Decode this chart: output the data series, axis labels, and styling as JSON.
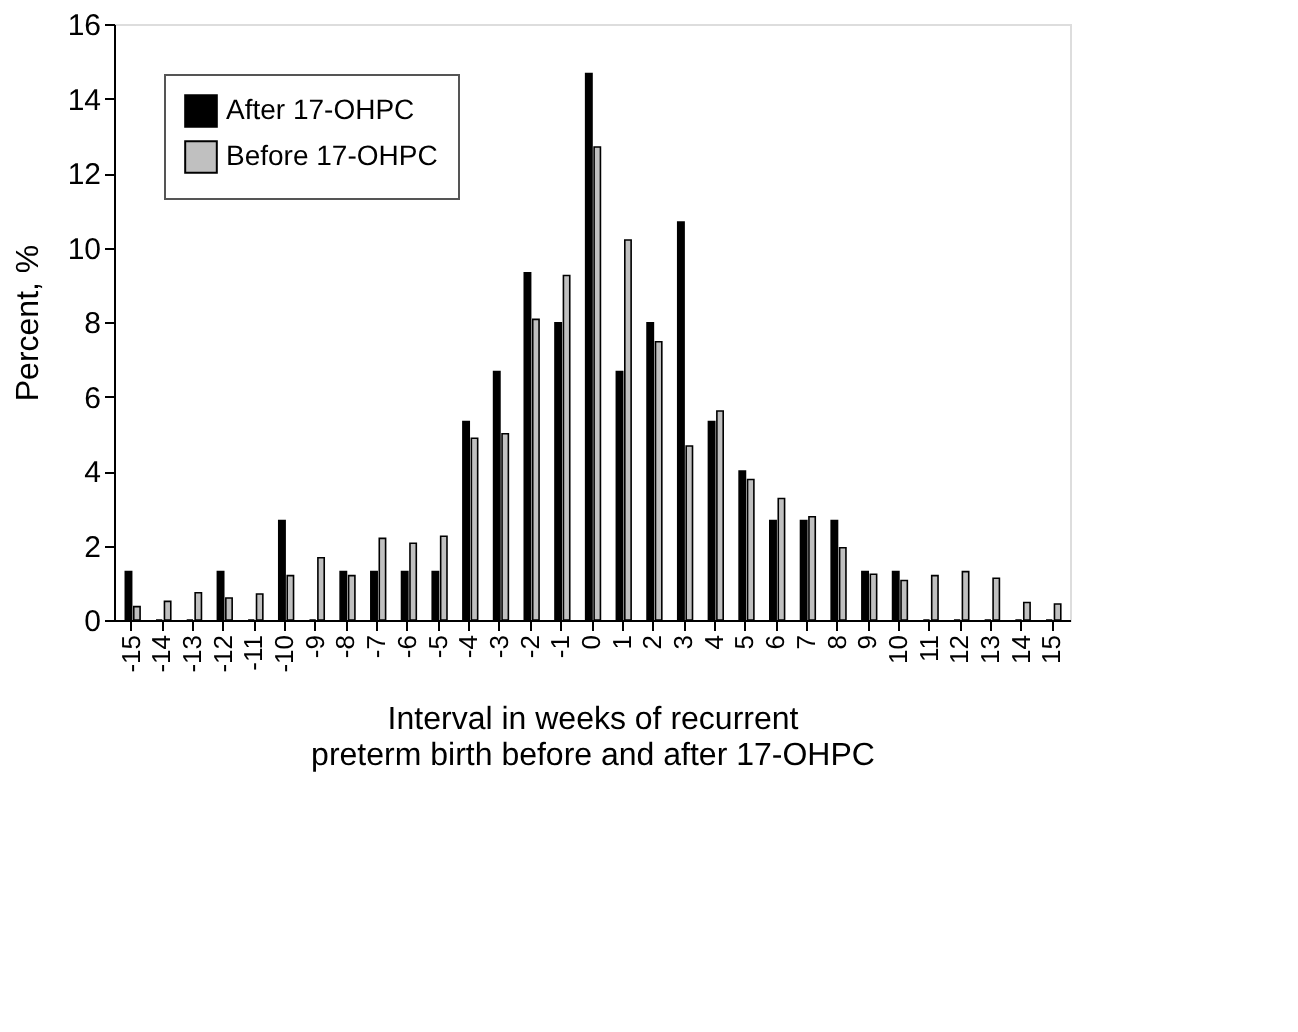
{
  "chart_data": {
    "type": "bar",
    "xlabel": "Interval in weeks of recurrent preterm birth before and after 17-OHPC",
    "ylabel": "Percent, %",
    "categories": [
      "-15",
      "-14",
      "-13",
      "-12",
      "-11",
      "-10",
      "-9",
      "-8",
      "-7",
      "-6",
      "-5",
      "-4",
      "-3",
      "-2",
      "-1",
      "0",
      "1",
      "2",
      "3",
      "4",
      "5",
      "6",
      "7",
      "8",
      "9",
      "10",
      "11",
      "12",
      "13",
      "14",
      "15"
    ],
    "series": [
      {
        "name": "After 17-OHPC",
        "color": "#000000",
        "values": [
          1.3,
          0,
          0,
          1.3,
          0,
          2.67,
          0,
          1.3,
          1.3,
          1.3,
          1.3,
          5.33,
          6.67,
          9.32,
          7.98,
          14.67,
          6.67,
          7.98,
          10.68,
          5.33,
          4.0,
          2.67,
          2.67,
          2.67,
          1.3,
          1.3,
          0,
          0,
          0,
          0,
          0
        ]
      },
      {
        "name": "Before 17-OHPC",
        "color": "#c0c0c0",
        "values": [
          0.36,
          0.5,
          0.73,
          0.59,
          0.7,
          1.19,
          1.67,
          1.19,
          2.19,
          2.06,
          2.25,
          4.88,
          5.0,
          8.07,
          9.25,
          12.7,
          10.2,
          7.47,
          4.67,
          5.61,
          3.77,
          3.26,
          2.77,
          1.94,
          1.23,
          1.06,
          1.19,
          1.3,
          1.12,
          0.47,
          0.43
        ]
      }
    ],
    "ylim": [
      0,
      16
    ],
    "yticks": [
      0,
      2,
      4,
      6,
      8,
      10,
      12,
      14,
      16
    ],
    "grid": false,
    "legend": "top left"
  }
}
